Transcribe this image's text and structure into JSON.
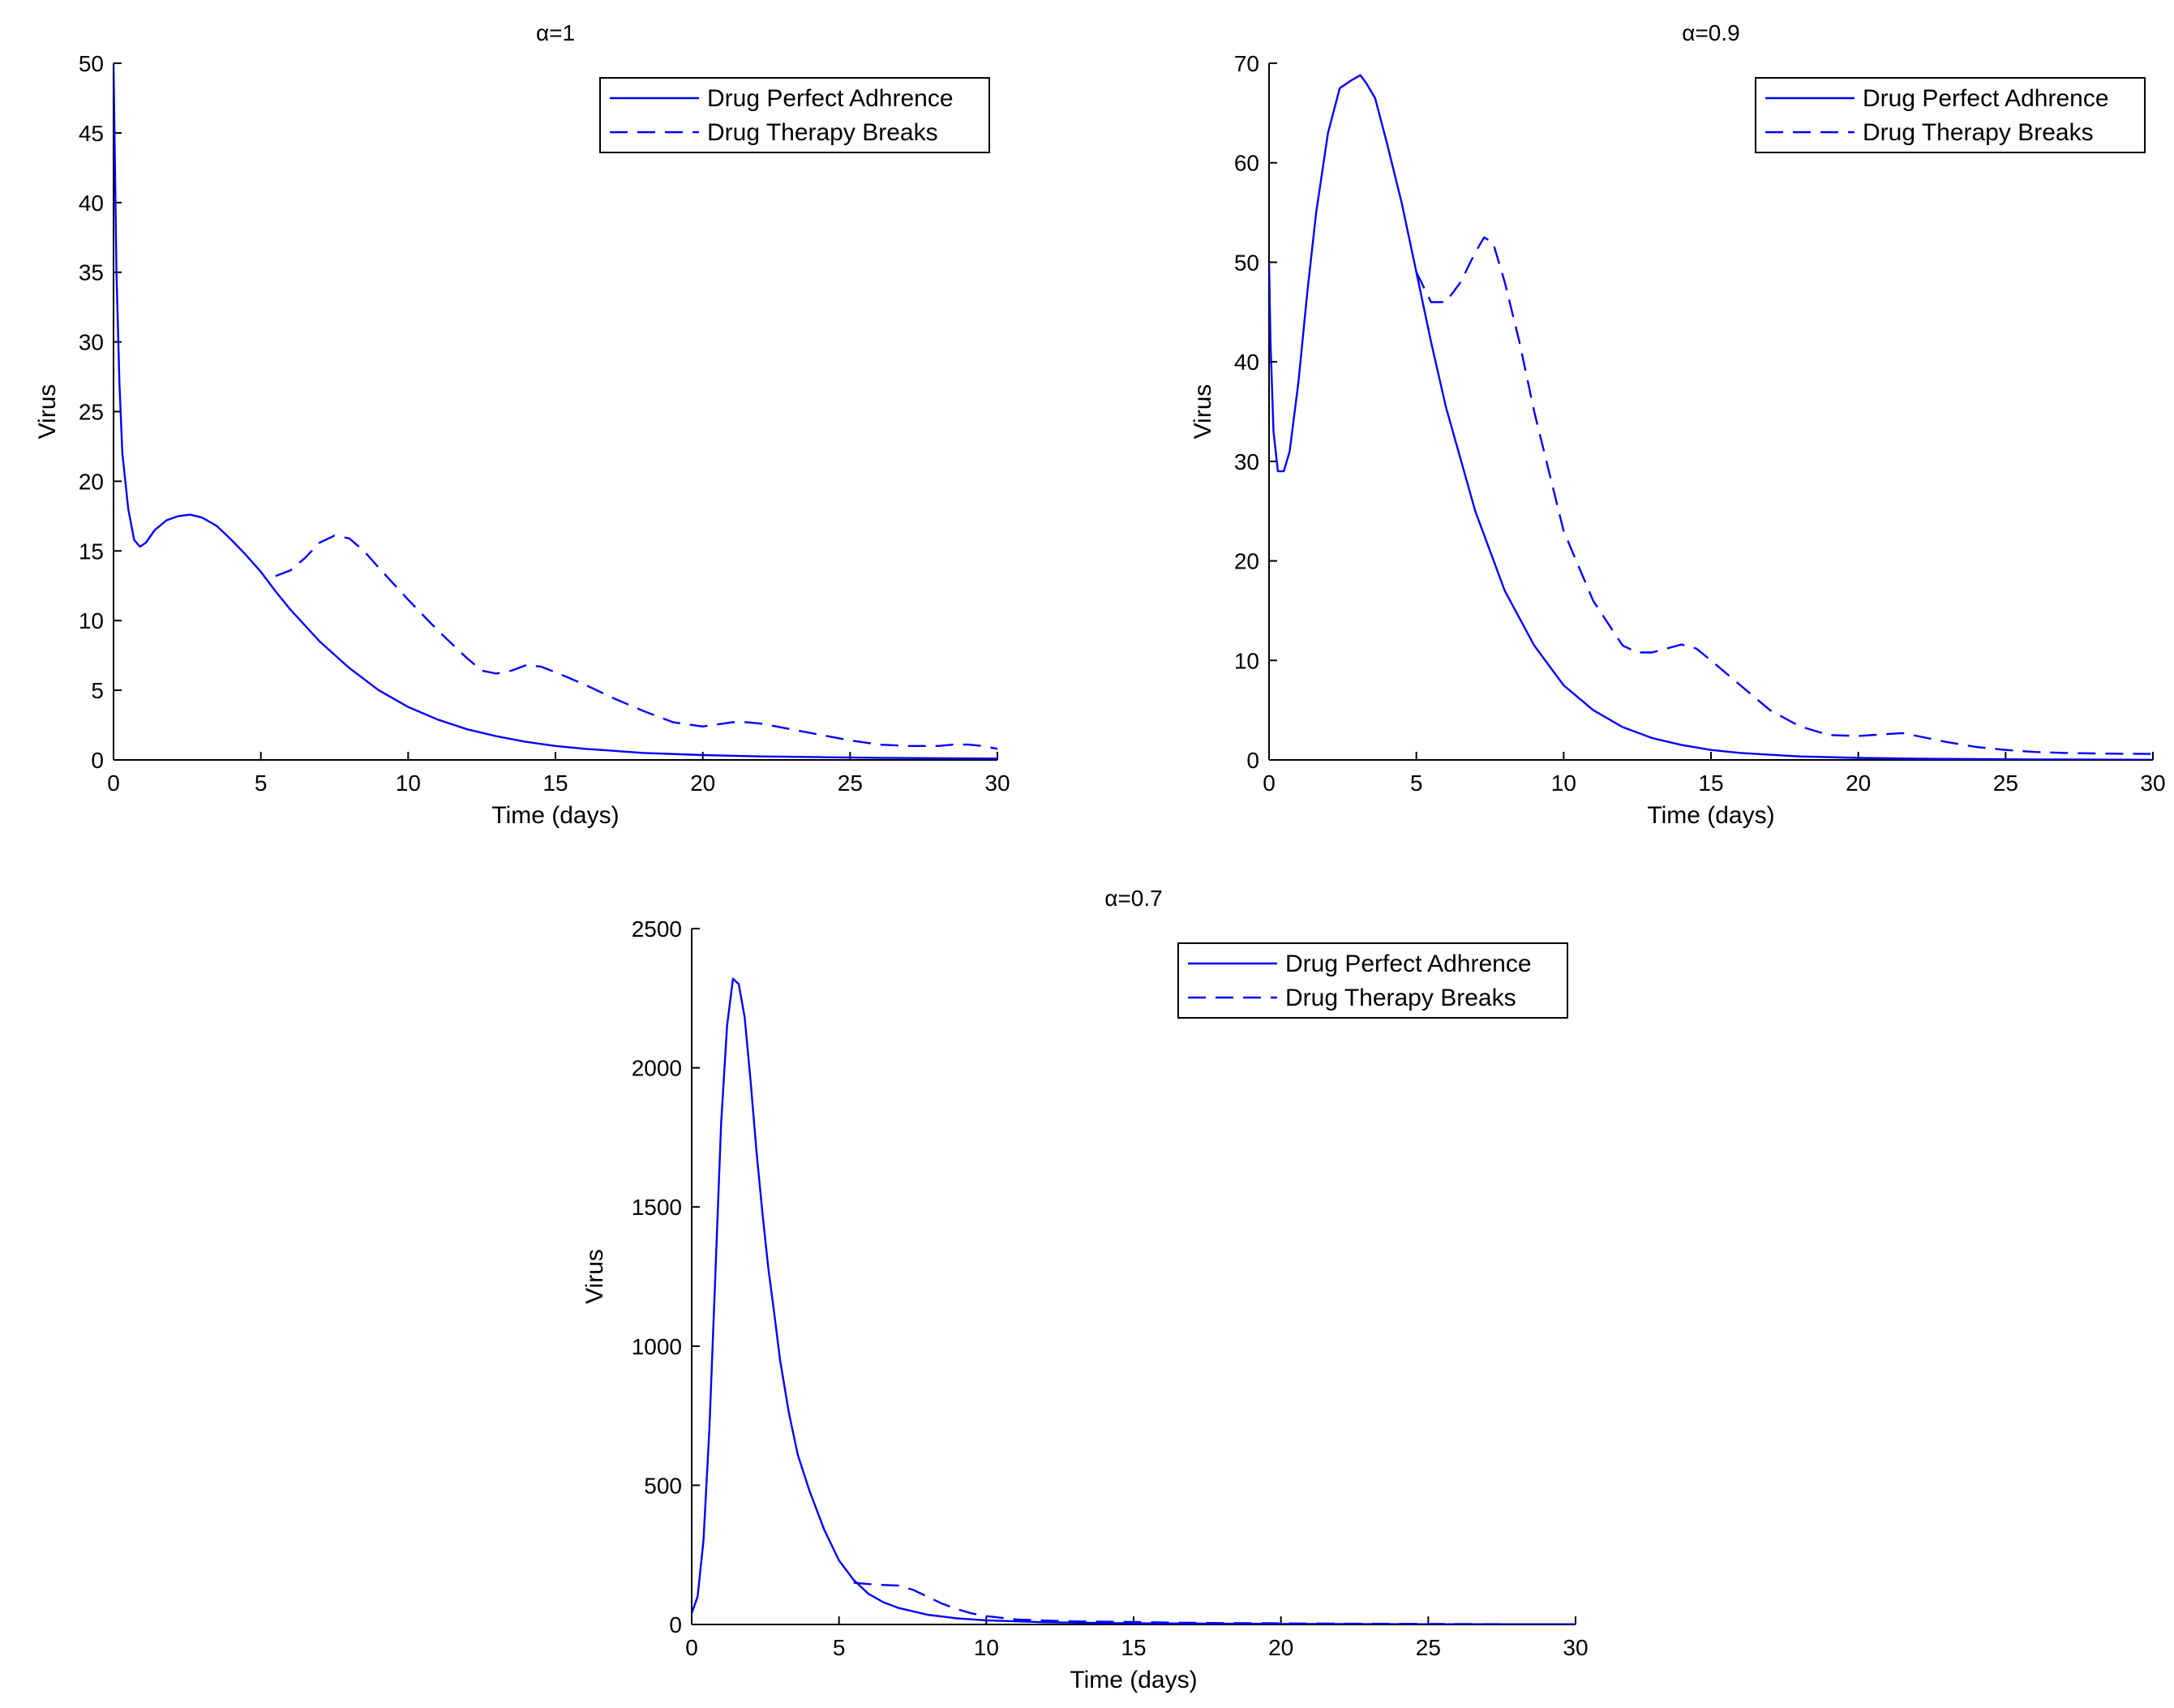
{
  "chart_data": [
    {
      "type": "line",
      "title": "α=1",
      "xlabel": "Time (days)",
      "ylabel": "Virus",
      "xlim": [
        0,
        30
      ],
      "ylim": [
        0,
        50
      ],
      "xticks": [
        0,
        5,
        10,
        15,
        20,
        25,
        30
      ],
      "yticks": [
        0,
        5,
        10,
        15,
        20,
        25,
        30,
        35,
        40,
        45,
        50
      ],
      "legend_position": "top-right",
      "series": [
        {
          "name": "Drug Perfect Adhrence",
          "style": "solid",
          "color": "#0000ff",
          "x": [
            0,
            0.1,
            0.2,
            0.3,
            0.5,
            0.7,
            0.9,
            1.1,
            1.4,
            1.8,
            2.2,
            2.6,
            3.0,
            3.5,
            4.0,
            4.5,
            5.0,
            5.5,
            6,
            7,
            8,
            9,
            10,
            11,
            12,
            13,
            14,
            15,
            16,
            18,
            20,
            22,
            24,
            26,
            28,
            30
          ],
          "y": [
            50,
            35,
            27,
            22,
            18,
            15.8,
            15.3,
            15.6,
            16.5,
            17.2,
            17.5,
            17.6,
            17.4,
            16.8,
            15.8,
            14.7,
            13.5,
            12.1,
            10.8,
            8.5,
            6.6,
            5.0,
            3.8,
            2.9,
            2.2,
            1.7,
            1.3,
            1.0,
            0.8,
            0.5,
            0.35,
            0.25,
            0.2,
            0.15,
            0.12,
            0.1
          ]
        },
        {
          "name": "Drug Therapy Breaks",
          "style": "dashed",
          "color": "#0000ff",
          "x": [
            5.5,
            6,
            6.5,
            7,
            7.5,
            8,
            8.5,
            9,
            10,
            11,
            12,
            12.5,
            13,
            13.5,
            14,
            14.5,
            15,
            16,
            17,
            18,
            19,
            20,
            21,
            21.5,
            22,
            23,
            24,
            25,
            26,
            27,
            28,
            28.5,
            29,
            29.5,
            30
          ],
          "y": [
            13.2,
            13.6,
            14.5,
            15.6,
            16.1,
            15.9,
            15.0,
            13.8,
            11.5,
            9.3,
            7.3,
            6.4,
            6.2,
            6.4,
            6.8,
            6.7,
            6.3,
            5.4,
            4.4,
            3.5,
            2.7,
            2.4,
            2.7,
            2.7,
            2.6,
            2.2,
            1.8,
            1.4,
            1.1,
            1.0,
            1.0,
            1.1,
            1.1,
            1.0,
            0.8
          ]
        }
      ]
    },
    {
      "type": "line",
      "title": "α=0.9",
      "xlabel": "Time (days)",
      "ylabel": "Virus",
      "xlim": [
        0,
        30
      ],
      "ylim": [
        0,
        70
      ],
      "xticks": [
        0,
        5,
        10,
        15,
        20,
        25,
        30
      ],
      "yticks": [
        0,
        10,
        20,
        30,
        40,
        50,
        60,
        70
      ],
      "legend_position": "top-right",
      "series": [
        {
          "name": "Drug Perfect Adhrence",
          "style": "solid",
          "color": "#0000ff",
          "x": [
            0,
            0.05,
            0.15,
            0.3,
            0.5,
            0.7,
            1.0,
            1.3,
            1.6,
            2.0,
            2.4,
            2.8,
            3.1,
            3.3,
            3.6,
            4.0,
            4.5,
            5.0,
            5.5,
            6,
            7,
            8,
            9,
            10,
            11,
            12,
            13,
            14,
            15,
            16,
            18,
            20,
            22,
            24,
            26,
            28,
            30
          ],
          "y": [
            50,
            42,
            33,
            29,
            29,
            31,
            38,
            47,
            55,
            63,
            67.5,
            68.3,
            68.8,
            68,
            66.5,
            62,
            56,
            49,
            42,
            35.5,
            25,
            17,
            11.5,
            7.5,
            5,
            3.3,
            2.2,
            1.5,
            1.0,
            0.7,
            0.35,
            0.2,
            0.12,
            0.08,
            0.05,
            0.03,
            0.02
          ]
        },
        {
          "name": "Drug Therapy Breaks",
          "style": "dashed",
          "color": "#0000ff",
          "x": [
            5.0,
            5.5,
            6,
            6.5,
            7,
            7.3,
            7.6,
            8,
            8.5,
            9,
            10,
            11,
            12,
            12.5,
            13,
            13.5,
            14,
            14.5,
            15,
            16,
            17,
            18,
            19,
            20,
            21,
            21.5,
            22,
            23,
            24,
            25,
            26,
            27,
            28,
            29,
            30
          ],
          "y": [
            49,
            46,
            46,
            48,
            51,
            52.5,
            52,
            48,
            42,
            35,
            23,
            16,
            11.5,
            10.8,
            10.8,
            11.2,
            11.6,
            11.2,
            10,
            7.5,
            5,
            3.4,
            2.5,
            2.4,
            2.6,
            2.7,
            2.4,
            1.8,
            1.3,
            1.0,
            0.8,
            0.7,
            0.65,
            0.62,
            0.6
          ]
        }
      ]
    },
    {
      "type": "line",
      "title": "α=0.7",
      "xlabel": "Time (days)",
      "ylabel": "Virus",
      "xlim": [
        0,
        30
      ],
      "ylim": [
        0,
        2500
      ],
      "xticks": [
        0,
        5,
        10,
        15,
        20,
        25,
        30
      ],
      "yticks": [
        0,
        500,
        1000,
        1500,
        2000,
        2500
      ],
      "legend_position": "top-right",
      "series": [
        {
          "name": "Drug Perfect Adhrence",
          "style": "solid",
          "color": "#0000ff",
          "x": [
            0,
            0.2,
            0.4,
            0.6,
            0.8,
            1.0,
            1.2,
            1.4,
            1.6,
            1.8,
            2.0,
            2.2,
            2.4,
            2.6,
            2.8,
            3.0,
            3.3,
            3.6,
            4.0,
            4.5,
            5.0,
            5.5,
            6,
            6.5,
            7,
            8,
            9,
            10,
            12,
            15,
            20,
            25,
            30
          ],
          "y": [
            40,
            100,
            300,
            700,
            1250,
            1800,
            2150,
            2320,
            2300,
            2180,
            1950,
            1700,
            1480,
            1280,
            1120,
            950,
            760,
            610,
            480,
            340,
            230,
            160,
            110,
            80,
            60,
            35,
            22,
            15,
            8,
            4,
            2,
            1,
            1
          ]
        },
        {
          "name": "Drug Therapy Breaks",
          "style": "dashed",
          "color": "#0000ff",
          "x": [
            5.5,
            6,
            6.5,
            7,
            7.5,
            8,
            8.5,
            9,
            9.5,
            10,
            11,
            12,
            13,
            14,
            15,
            16,
            18,
            20,
            22,
            25,
            28,
            30
          ],
          "y": [
            150,
            145,
            142,
            140,
            125,
            100,
            75,
            55,
            40,
            30,
            18,
            14,
            11,
            10,
            9,
            7,
            5,
            4,
            3,
            2,
            1,
            1
          ]
        }
      ]
    }
  ]
}
